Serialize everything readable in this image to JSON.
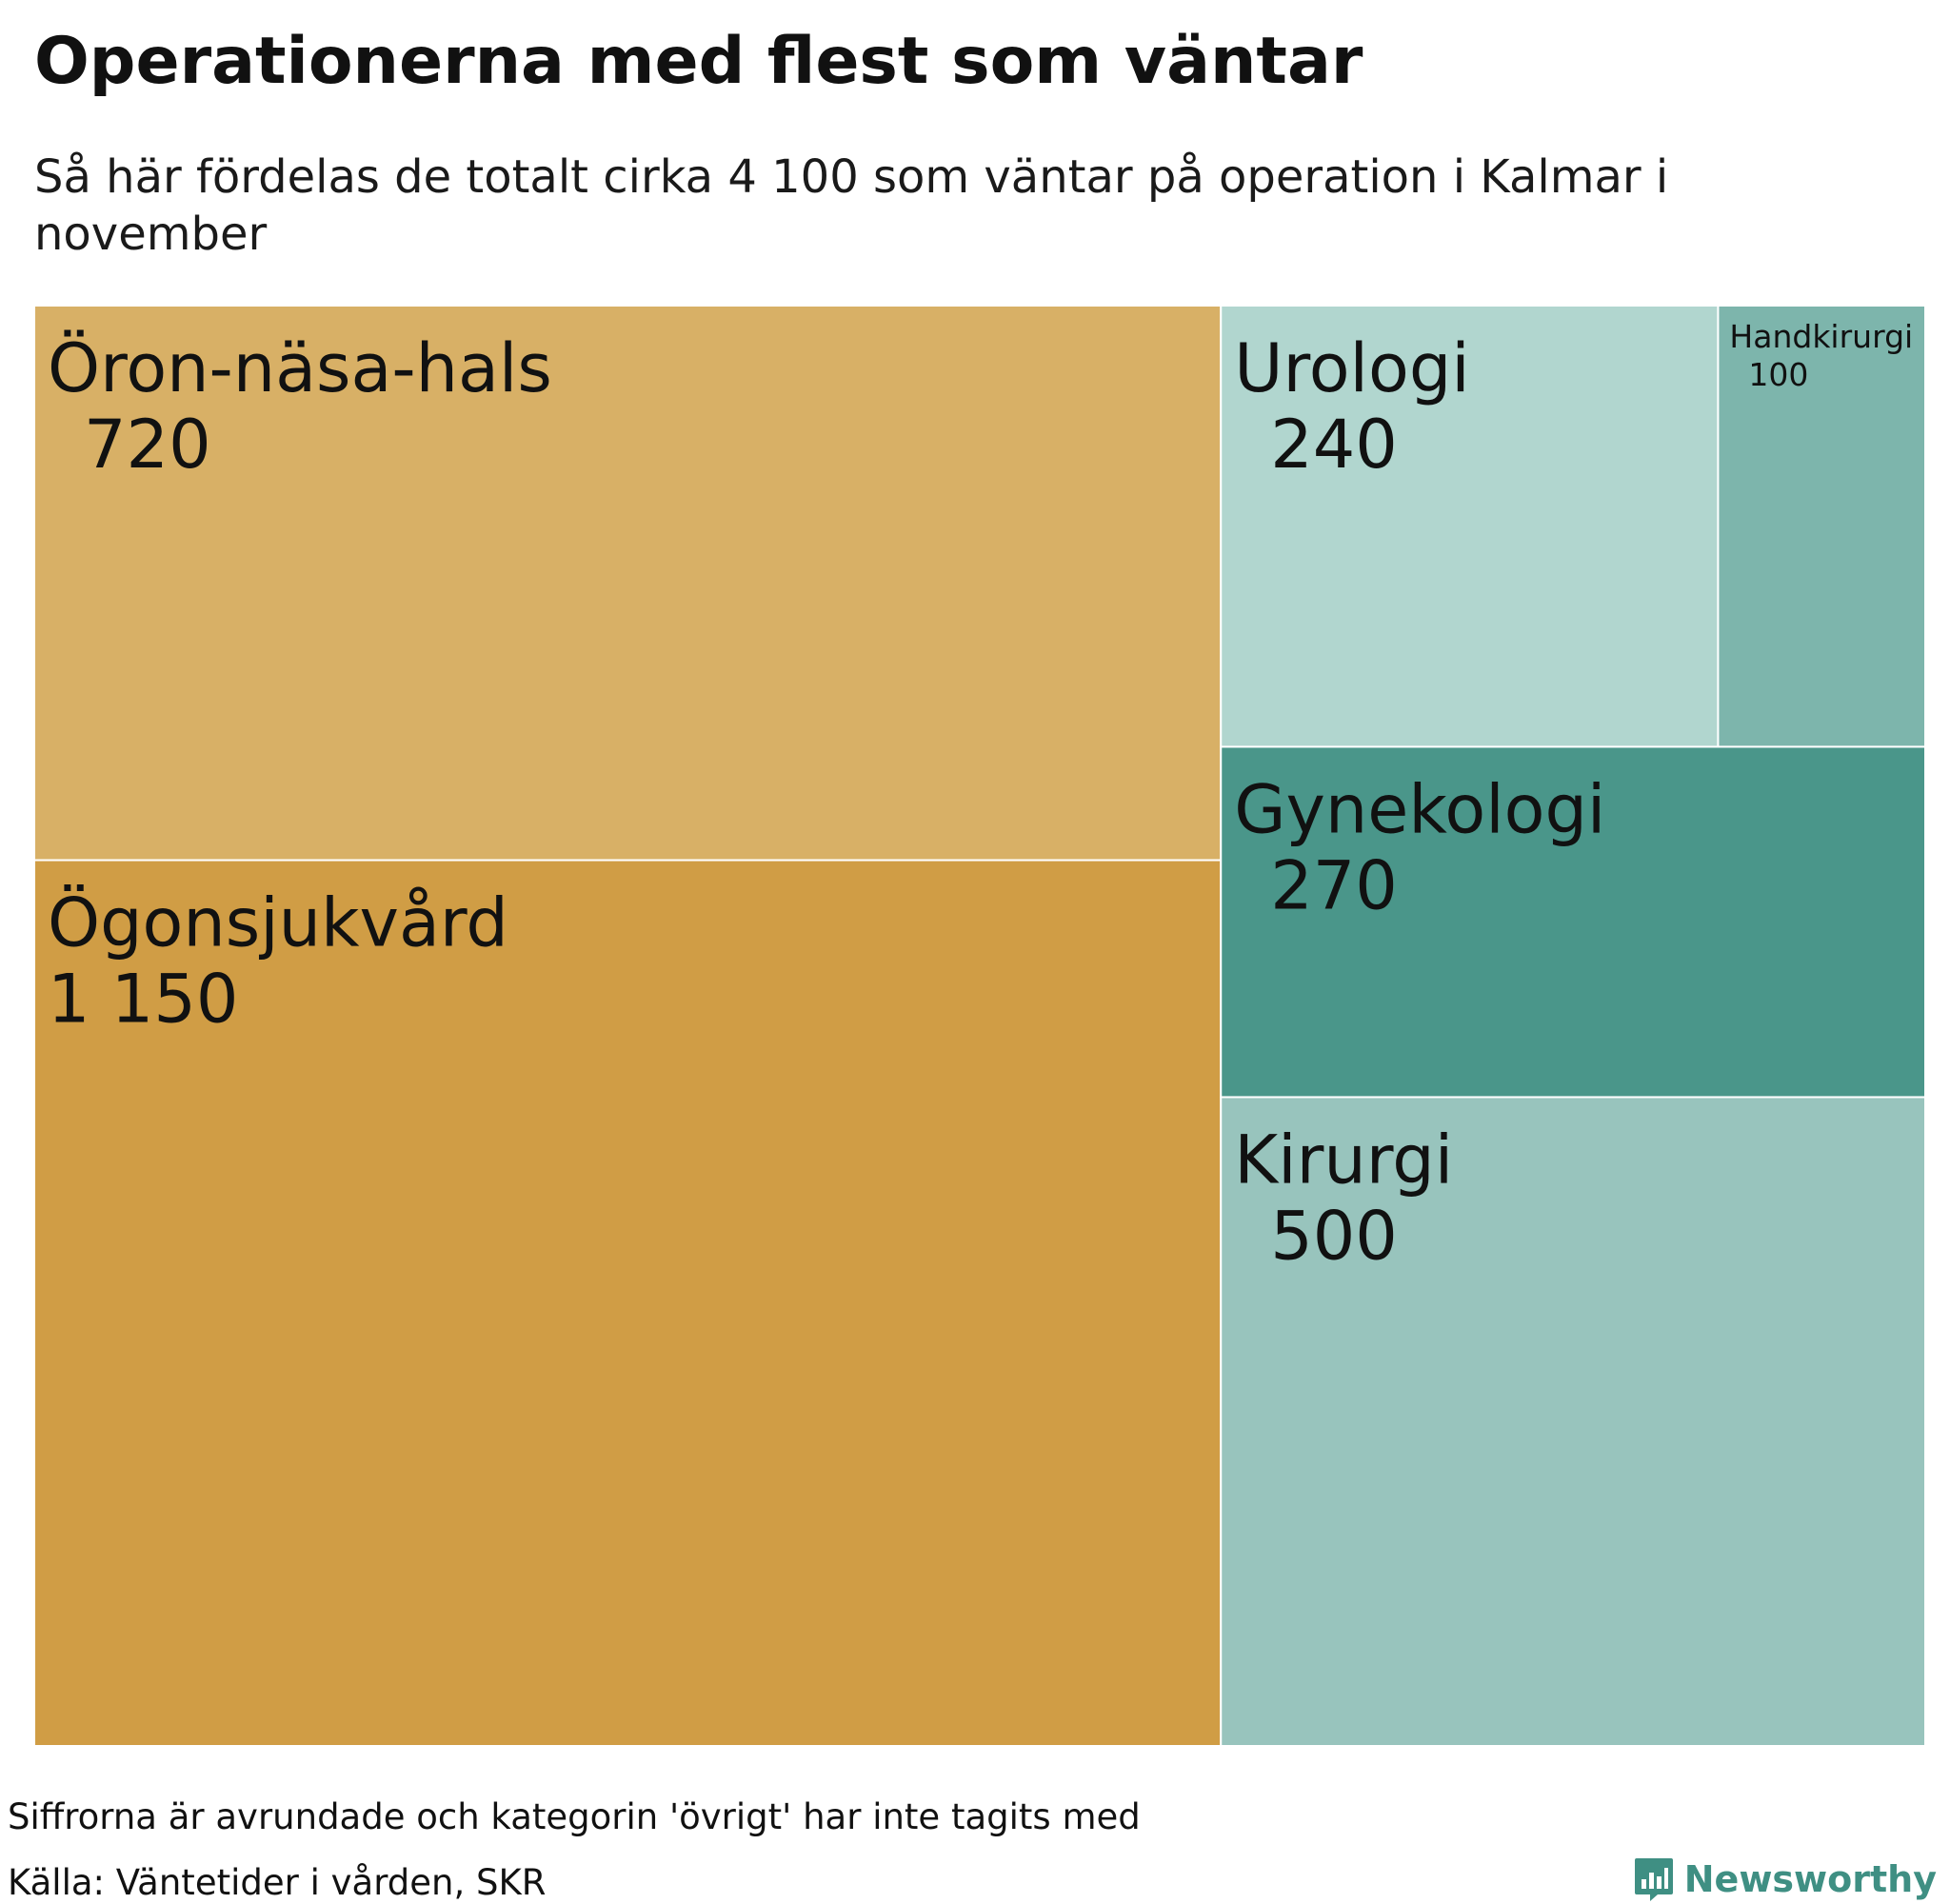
{
  "title": "Operationerna med flest som väntar",
  "subtitle": "Så här fördelas de totalt cirka 4 100 som väntar på operation i Kalmar i november",
  "note": "Siffrorna är avrundade och kategorin 'övrigt' har inte tagits med",
  "source": "Källa: Väntetider i vården, SKR",
  "brand": {
    "name": "Newsworthy",
    "icon": "newsworthy-logo-icon",
    "color": "#3f8f83"
  },
  "chart_data": {
    "type": "treemap",
    "title": "Operationerna med flest som väntar",
    "subtitle": "Så här fördelas de totalt cirka 4 100 som väntar på operation i Kalmar i november",
    "items": [
      {
        "name": "Ögonsjukvård",
        "value": 1150,
        "label": "1 150",
        "color": "#d09d45"
      },
      {
        "name": "Öron-näsa-hals",
        "value": 720,
        "label": "720",
        "color": "#d8b066"
      },
      {
        "name": "Kirurgi",
        "value": 500,
        "label": "500",
        "color": "#98c4bd"
      },
      {
        "name": "Gynekologi",
        "value": 270,
        "label": "270",
        "color": "#4a968a"
      },
      {
        "name": "Urologi",
        "value": 240,
        "label": "240",
        "color": "#b1d6cf"
      },
      {
        "name": "Handkirurgi",
        "value": 100,
        "label": "100",
        "color": "#7db5ac"
      }
    ]
  }
}
